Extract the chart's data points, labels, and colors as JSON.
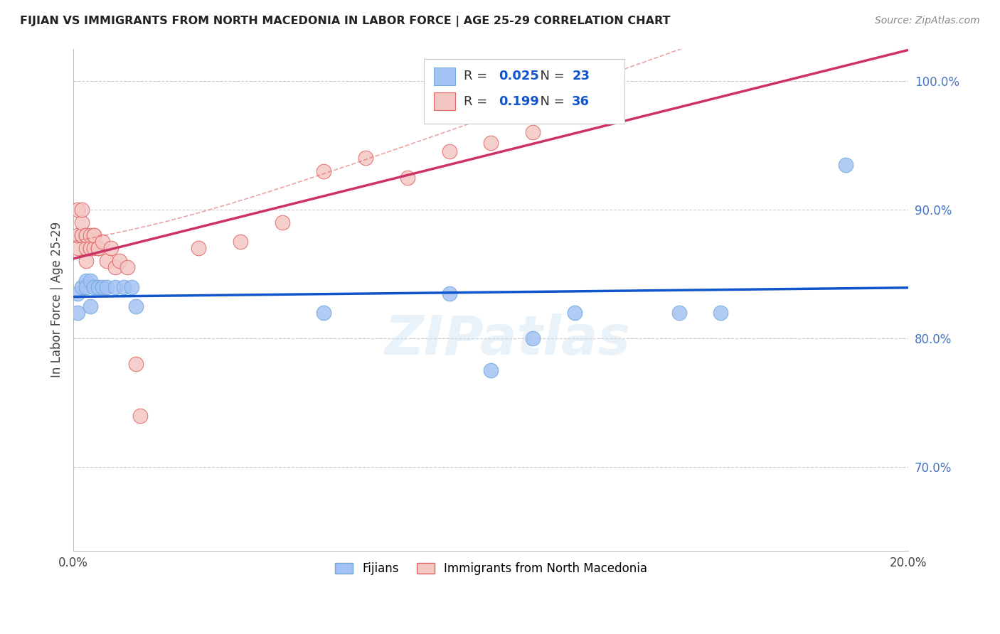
{
  "title": "FIJIAN VS IMMIGRANTS FROM NORTH MACEDONIA IN LABOR FORCE | AGE 25-29 CORRELATION CHART",
  "source": "Source: ZipAtlas.com",
  "ylabel": "In Labor Force | Age 25-29",
  "xlim": [
    0.0,
    0.2
  ],
  "ylim": [
    0.635,
    1.025
  ],
  "xtick_positions": [
    0.0,
    0.2
  ],
  "xticklabels": [
    "0.0%",
    "20.0%"
  ],
  "ytick_positions": [
    0.7,
    0.8,
    0.9,
    1.0
  ],
  "yticklabels": [
    "70.0%",
    "80.0%",
    "90.0%",
    "100.0%"
  ],
  "grid_yticks": [
    0.7,
    0.8,
    0.9,
    1.0
  ],
  "fijian_color": "#a4c2f4",
  "fijian_edge": "#6fa8dc",
  "macedonia_color": "#f4c7c3",
  "macedonia_edge": "#e06666",
  "fijian_R": 0.025,
  "fijian_N": 23,
  "macedonia_R": 0.199,
  "macedonia_N": 36,
  "watermark": "ZIPatlas",
  "fijian_x": [
    0.001,
    0.001,
    0.002,
    0.003,
    0.003,
    0.004,
    0.004,
    0.005,
    0.006,
    0.007,
    0.008,
    0.01,
    0.012,
    0.014,
    0.015,
    0.06,
    0.09,
    0.1,
    0.11,
    0.12,
    0.145,
    0.155,
    0.185
  ],
  "fijian_y": [
    0.835,
    0.82,
    0.84,
    0.845,
    0.84,
    0.825,
    0.845,
    0.84,
    0.84,
    0.84,
    0.84,
    0.84,
    0.84,
    0.84,
    0.825,
    0.82,
    0.835,
    0.775,
    0.8,
    0.82,
    0.82,
    0.82,
    0.935
  ],
  "macedonia_x": [
    0.001,
    0.001,
    0.001,
    0.002,
    0.002,
    0.002,
    0.002,
    0.003,
    0.003,
    0.003,
    0.003,
    0.004,
    0.004,
    0.004,
    0.005,
    0.005,
    0.005,
    0.006,
    0.006,
    0.007,
    0.008,
    0.009,
    0.01,
    0.011,
    0.013,
    0.015,
    0.016,
    0.03,
    0.04,
    0.05,
    0.06,
    0.07,
    0.08,
    0.09,
    0.1,
    0.11
  ],
  "macedonia_y": [
    0.87,
    0.88,
    0.9,
    0.88,
    0.88,
    0.89,
    0.9,
    0.86,
    0.87,
    0.88,
    0.88,
    0.87,
    0.87,
    0.88,
    0.87,
    0.88,
    0.88,
    0.87,
    0.87,
    0.875,
    0.86,
    0.87,
    0.855,
    0.86,
    0.855,
    0.78,
    0.74,
    0.87,
    0.875,
    0.89,
    0.93,
    0.94,
    0.925,
    0.945,
    0.952,
    0.96
  ],
  "blue_line_color": "#1155cc",
  "pink_line_color": "#cc3366",
  "conf_dashed_color": "#e06666",
  "legend_box_fijian_fill": "#a4c2f4",
  "legend_box_fijian_edge": "#6fa8dc",
  "legend_box_mac_fill": "#f4c7c3",
  "legend_box_mac_edge": "#e06666",
  "R_color": "#1155cc",
  "N_color": "#1155cc"
}
